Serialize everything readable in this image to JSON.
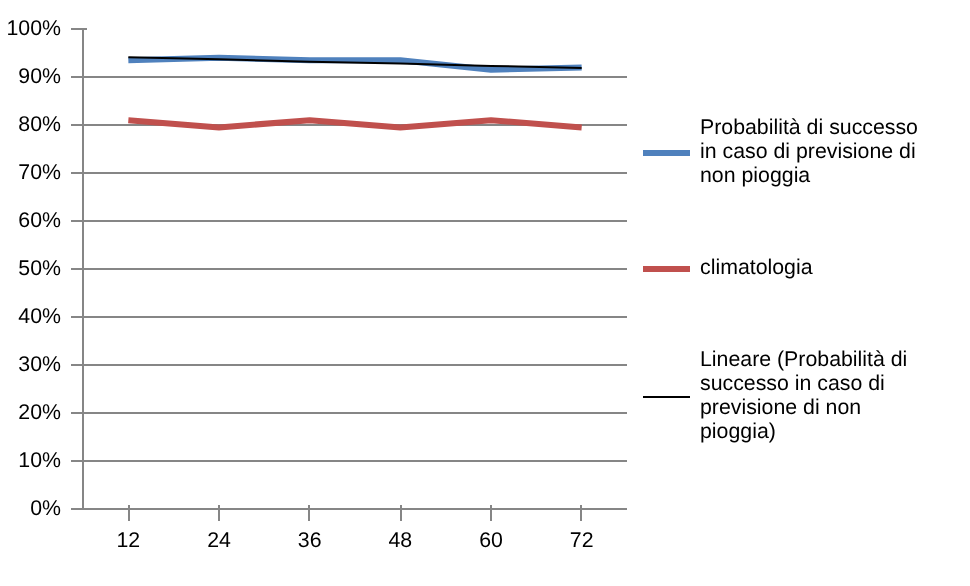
{
  "chart_data": {
    "type": "line",
    "categories": [
      "12",
      "24",
      "36",
      "48",
      "60",
      "72"
    ],
    "series": [
      {
        "name": "Probabilità di successo in caso di previsione di non pioggia",
        "color": "#4f81bd",
        "values": [
          93.5,
          94,
          93.5,
          93.5,
          91.5,
          92
        ]
      },
      {
        "name": "climatologia",
        "color": "#c0504d",
        "values": [
          81,
          79.5,
          81,
          79.5,
          81,
          79.5
        ]
      },
      {
        "name": "Lineare (Probabilità di successo in caso di previsione di non pioggia)",
        "color": "#000000",
        "values": [
          94.1,
          93.7,
          93.2,
          92.8,
          92.3,
          91.9
        ]
      }
    ],
    "ylim": [
      0,
      100
    ],
    "yticks": [
      {
        "value": 0,
        "label": "0%"
      },
      {
        "value": 10,
        "label": "10%"
      },
      {
        "value": 20,
        "label": "20%"
      },
      {
        "value": 30,
        "label": "30%"
      },
      {
        "value": 40,
        "label": "40%"
      },
      {
        "value": 50,
        "label": "50%"
      },
      {
        "value": 60,
        "label": "60%"
      },
      {
        "value": 70,
        "label": "70%"
      },
      {
        "value": 80,
        "label": "80%"
      },
      {
        "value": 90,
        "label": "90%"
      },
      {
        "value": 100,
        "label": "100%"
      }
    ],
    "grid": "y",
    "legend": "right",
    "marker": "none",
    "line_style": "solid"
  }
}
